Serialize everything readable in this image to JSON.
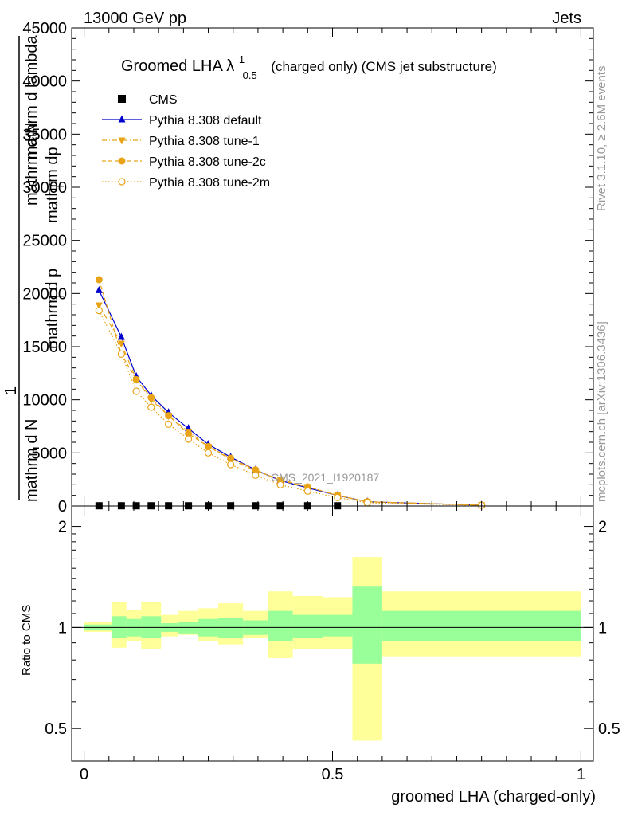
{
  "header": {
    "left": "13000 GeV pp",
    "right": "Jets"
  },
  "side": {
    "rivet": "Rivet 3.1.10, ≥ 2.6M events",
    "mcplots": "mcplots.cern.ch [arXiv:1306.3436]"
  },
  "chart_data": {
    "type": "line",
    "title": "Groomed LHA λ",
    "title_sup": "1",
    "title_sub": "0.5",
    "title_rest": "(charged only) (CMS jet substructure)",
    "analysis_label": "CMS_2021_I1920187",
    "ylabel_lines": [
      "1",
      "mathrm d N / mathrm d p_T",
      "mathrm d^2 N / mathrm dp_T mathrm d lambda"
    ],
    "ylabel_fragments": [
      "mathrm d N",
      "mathrm d N",
      "mathrm dp",
      "T",
      "mathrm d p",
      "T",
      "mathrm d lambda"
    ],
    "ratio_ylabel": "Ratio to CMS",
    "xlabel": "groomed LHA (charged-only)",
    "xlim": [
      -0.025,
      1.025
    ],
    "ylim": [
      0,
      45000
    ],
    "ratio_ylim": [
      0.4,
      2.3
    ],
    "x_ticks": [
      "0",
      "0.5",
      "1"
    ],
    "x_tick_values": [
      0,
      0.5,
      1
    ],
    "y_ticks": [
      "0",
      "5000",
      "10000",
      "15000",
      "20000",
      "25000",
      "30000",
      "35000",
      "40000",
      "45000"
    ],
    "y_tick_values": [
      0,
      5000,
      10000,
      15000,
      20000,
      25000,
      30000,
      35000,
      40000,
      45000
    ],
    "ratio_ticks": [
      "0.5",
      "1",
      "2"
    ],
    "ratio_tick_values": [
      0.5,
      1,
      2
    ],
    "legend_position": "top-left",
    "x": [
      0.03,
      0.075,
      0.105,
      0.135,
      0.17,
      0.21,
      0.25,
      0.295,
      0.345,
      0.395,
      0.45,
      0.51,
      0.57,
      0.8
    ],
    "series": [
      {
        "name": "CMS",
        "color": "#000000",
        "marker": "square",
        "style": "none",
        "values": [
          20,
          20,
          20,
          20,
          20,
          20,
          20,
          20,
          20,
          20,
          20,
          20,
          null,
          null
        ]
      },
      {
        "name": "Pythia 8.308 default",
        "color": "#0000cc",
        "marker": "triangle-up",
        "style": "solid",
        "values": [
          20300,
          15900,
          12200,
          10400,
          8800,
          7300,
          5800,
          4600,
          3400,
          2400,
          1700,
          1000,
          400,
          80
        ]
      },
      {
        "name": "Pythia 8.308 tune-1",
        "color": "#e8a317",
        "marker": "triangle-down",
        "style": "dashdot",
        "values": [
          18900,
          15300,
          11900,
          10000,
          8500,
          7000,
          5600,
          4400,
          3300,
          2500,
          1800,
          1000,
          400,
          80
        ]
      },
      {
        "name": "Pythia 8.308 tune-2c",
        "color": "#e8a317",
        "marker": "circle",
        "style": "dashed",
        "values": [
          21300,
          14300,
          11900,
          10200,
          8500,
          6800,
          5600,
          4500,
          3400,
          2400,
          1800,
          1000,
          400,
          80
        ]
      },
      {
        "name": "Pythia 8.308 tune-2m",
        "color": "#e8a317",
        "marker": "circle-open",
        "style": "dotted",
        "values": [
          18400,
          14300,
          10800,
          9300,
          7700,
          6300,
          5000,
          3900,
          2900,
          2000,
          1400,
          800,
          300,
          60
        ]
      }
    ],
    "ratio_bands": {
      "bins": [
        [
          0.0,
          0.055
        ],
        [
          0.055,
          0.085
        ],
        [
          0.085,
          0.115
        ],
        [
          0.115,
          0.14
        ],
        [
          0.14,
          0.155
        ],
        [
          0.155,
          0.19
        ],
        [
          0.19,
          0.23
        ],
        [
          0.23,
          0.27
        ],
        [
          0.27,
          0.32
        ],
        [
          0.32,
          0.37
        ],
        [
          0.37,
          0.42
        ],
        [
          0.42,
          0.48
        ],
        [
          0.48,
          0.54
        ],
        [
          0.54,
          0.6
        ],
        [
          0.6,
          1.0
        ]
      ],
      "green": [
        [
          0.98,
          1.02
        ],
        [
          0.93,
          1.08
        ],
        [
          0.94,
          1.06
        ],
        [
          0.93,
          1.08
        ],
        [
          0.93,
          1.08
        ],
        [
          0.97,
          1.03
        ],
        [
          0.96,
          1.04
        ],
        [
          0.94,
          1.06
        ],
        [
          0.93,
          1.07
        ],
        [
          0.95,
          1.05
        ],
        [
          0.91,
          1.12
        ],
        [
          0.93,
          1.09
        ],
        [
          0.94,
          1.09
        ],
        [
          0.78,
          1.33
        ],
        [
          0.91,
          1.12
        ]
      ],
      "yellow": [
        [
          0.97,
          1.04
        ],
        [
          0.87,
          1.19
        ],
        [
          0.91,
          1.13
        ],
        [
          0.86,
          1.19
        ],
        [
          0.86,
          1.19
        ],
        [
          0.94,
          1.09
        ],
        [
          0.95,
          1.12
        ],
        [
          0.91,
          1.14
        ],
        [
          0.89,
          1.18
        ],
        [
          0.93,
          1.12
        ],
        [
          0.81,
          1.28
        ],
        [
          0.86,
          1.24
        ],
        [
          0.86,
          1.23
        ],
        [
          0.46,
          1.62
        ],
        [
          0.82,
          1.28
        ]
      ]
    }
  }
}
